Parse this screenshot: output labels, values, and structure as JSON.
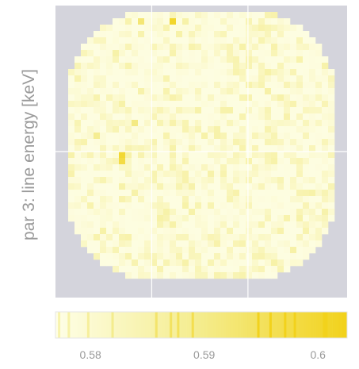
{
  "chart_data": {
    "type": "heatmap",
    "title": "",
    "ylabel": "par 3: line energy [keV]",
    "xlabel": "",
    "color_scale": {
      "ticks": [
        "0.58",
        "0.59",
        "0.6"
      ],
      "range": [
        0.575,
        0.603
      ],
      "colors": [
        "#fefee6",
        "#f4ec8c",
        "#f2d21c"
      ]
    },
    "grid": true,
    "background_color": "#d4d4dc",
    "region_shape": "rounded-disc",
    "notable_cells": [
      {
        "col": 18,
        "row": 2,
        "value": 0.601
      },
      {
        "col": 10,
        "row": 23,
        "value": 0.6
      },
      {
        "col": 10,
        "row": 24,
        "value": 0.598
      },
      {
        "col": 12,
        "row": 18,
        "value": 0.59
      },
      {
        "col": 13,
        "row": 2,
        "value": 0.592
      },
      {
        "col": 6,
        "row": 20,
        "value": 0.588
      }
    ]
  }
}
